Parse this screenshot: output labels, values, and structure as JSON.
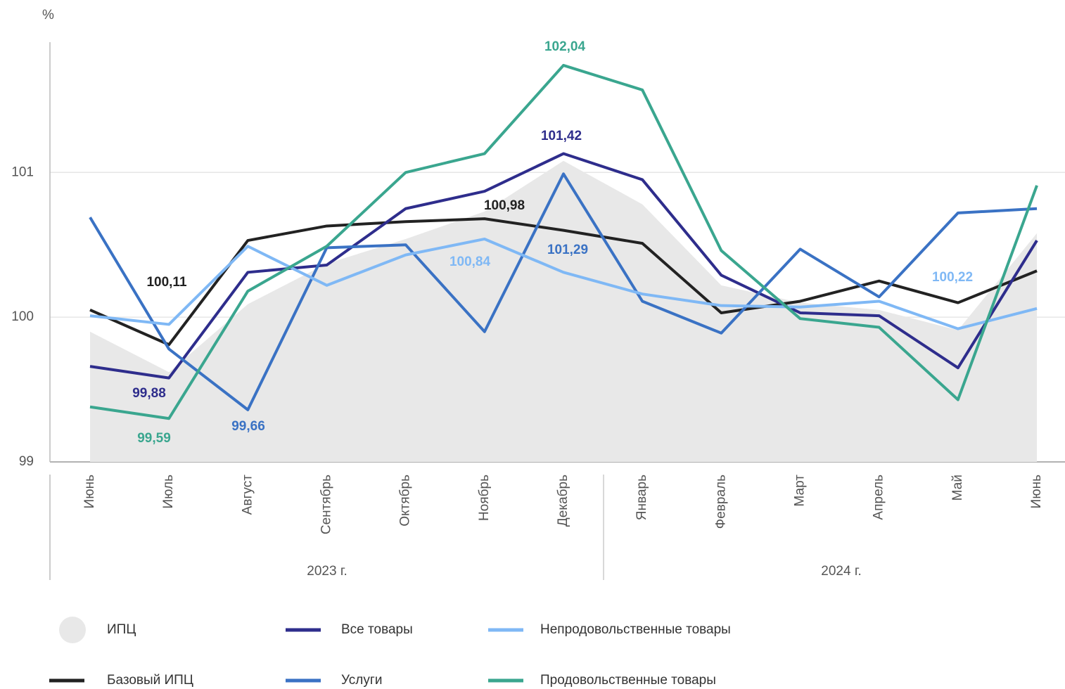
{
  "chart_data": {
    "type": "line",
    "y_unit": "%",
    "categories": [
      "Июнь",
      "Июль",
      "Август",
      "Сентябрь",
      "Октябрь",
      "Ноябрь",
      "Декабрь",
      "Январь",
      "Февраль",
      "Март",
      "Апрель",
      "Май",
      "Июнь"
    ],
    "group_labels": [
      "2023 г.",
      "2024 г."
    ],
    "ylim": [
      99,
      101.9
    ],
    "yticks": [
      99,
      100,
      101
    ],
    "grid": true,
    "series": [
      {
        "name": "ИПЦ",
        "color": "#e8e8e8",
        "area": true,
        "values": [
          99.9,
          99.62,
          100.09,
          100.37,
          100.54,
          100.73,
          101.08,
          100.78,
          100.22,
          100.1,
          100.05,
          99.91,
          100.58
        ]
      },
      {
        "name": "Базовый ИПЦ",
        "color": "#222222",
        "values": [
          100.05,
          99.81,
          100.53,
          100.63,
          100.66,
          100.68,
          100.6,
          100.51,
          100.03,
          100.11,
          100.25,
          100.1,
          100.32
        ]
      },
      {
        "name": "Все товары",
        "color": "#2e2d8c",
        "values": [
          99.66,
          99.58,
          100.31,
          100.36,
          100.75,
          100.87,
          101.13,
          100.95,
          100.29,
          100.03,
          100.01,
          99.65,
          100.53
        ]
      },
      {
        "name": "Услуги",
        "color": "#3a72c4",
        "values": [
          100.69,
          99.78,
          99.36,
          100.48,
          100.5,
          99.9,
          100.99,
          100.11,
          99.89,
          100.47,
          100.14,
          100.72,
          100.75
        ]
      },
      {
        "name": "Непродовольственные товары",
        "color": "#7fb8f5",
        "values": [
          100.01,
          99.95,
          100.49,
          100.22,
          100.43,
          100.54,
          100.31,
          100.16,
          100.08,
          100.07,
          100.11,
          99.92,
          100.06
        ]
      },
      {
        "name": "Продовольственные товары",
        "color": "#3aa68f",
        "values": [
          99.38,
          99.3,
          100.18,
          100.49,
          101.0,
          101.13,
          101.74,
          101.57,
          100.46,
          99.99,
          99.93,
          99.43,
          100.91
        ]
      }
    ],
    "annotations": [
      {
        "text": "102,04",
        "color": "#3aa68f"
      },
      {
        "text": "101,42",
        "color": "#2e2d8c"
      },
      {
        "text": "100,98",
        "color": "#222222"
      },
      {
        "text": "101,29",
        "color": "#3a72c4"
      },
      {
        "text": "100,84",
        "color": "#7fb8f5"
      },
      {
        "text": "100,11",
        "color": "#222222"
      },
      {
        "text": "99,88",
        "color": "#2e2d8c"
      },
      {
        "text": "99,59",
        "color": "#3aa68f"
      },
      {
        "text": "99,66",
        "color": "#3a72c4"
      },
      {
        "text": "100,22",
        "color": "#7fb8f5"
      }
    ]
  }
}
